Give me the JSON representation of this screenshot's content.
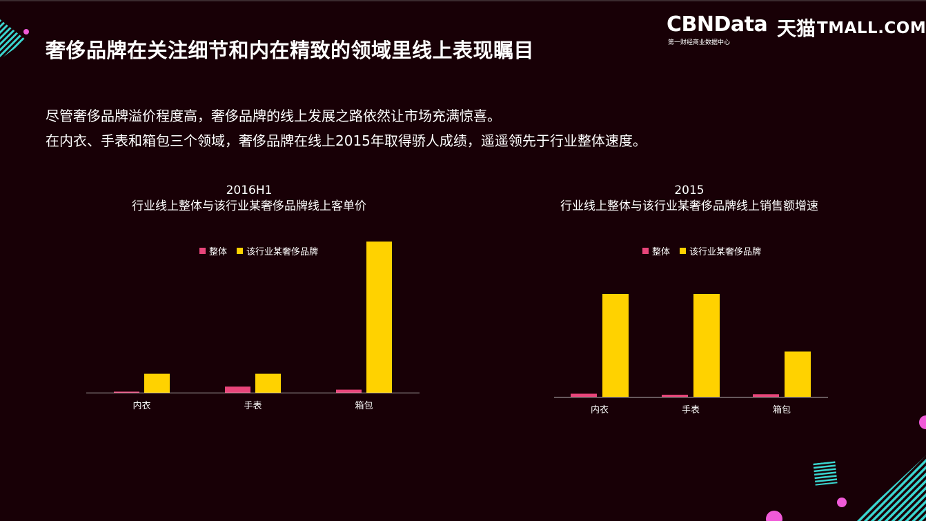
{
  "title": "奢侈品牌在关注细节和内在精致的领域里线上表现瞩目",
  "description": [
    "尽管奢侈品牌溢价程度高，奢侈品牌的线上发展之路依然让市场充满惊喜。",
    "在内衣、手表和箱包三个领域，奢侈品牌在线上2015年取得骄人成绩，遥遥领先于行业整体速度。"
  ],
  "logo": {
    "cbn": "CBNData",
    "cbn_sub": "第一财经商业数据中心",
    "tmall_cn": "天猫",
    "tmall_en": "TMALL.COM"
  },
  "colors": {
    "background": "#180006",
    "overall": "#e8457a",
    "brand": "#ffd200",
    "axis": "#bfbfbf",
    "deco_cyan": "#3ad6d0",
    "deco_pink": "#f05ad8"
  },
  "chart_data": [
    {
      "type": "bar",
      "title_line1": "2016H1",
      "title_line2": "行业线上整体与该行业某奢侈品牌线上客单价",
      "categories": [
        "内衣",
        "手表",
        "箱包"
      ],
      "series": [
        {
          "name": "整体",
          "values": [
            1,
            8,
            4
          ]
        },
        {
          "name": "该行业某奢侈品牌",
          "values": [
            25,
            25,
            200
          ]
        }
      ],
      "ylim": [
        0,
        200
      ],
      "grid": false,
      "legend": "top"
    },
    {
      "type": "bar",
      "title_line1": "2015",
      "title_line2": "行业线上整体与该行业某奢侈品牌线上销售额增速",
      "categories": [
        "内衣",
        "手表",
        "箱包"
      ],
      "series": [
        {
          "name": "整体",
          "values": [
            3,
            2,
            2.5
          ]
        },
        {
          "name": "该行业某奢侈品牌",
          "values": [
            100,
            100,
            44
          ]
        }
      ],
      "ylim": [
        0,
        100
      ],
      "grid": false,
      "legend": "top"
    }
  ]
}
